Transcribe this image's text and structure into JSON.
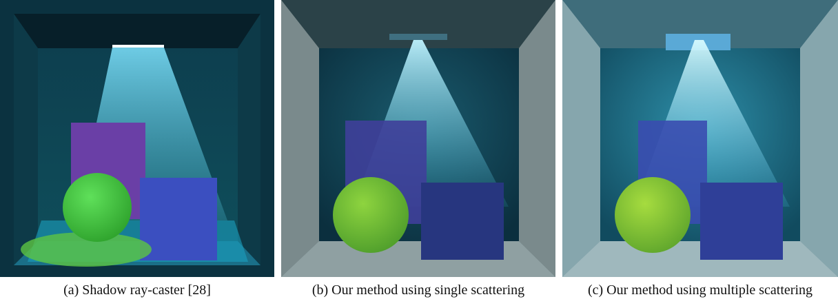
{
  "figure": {
    "panels": [
      {
        "caption": "(a)  Shadow ray-caster [28]",
        "render_style": "shadow-ray-caster"
      },
      {
        "caption": "(b)  Our method using single scattering",
        "render_style": "single-scattering"
      },
      {
        "caption": "(c)  Our method using multiple scattering",
        "render_style": "multiple-scattering"
      }
    ],
    "colors": {
      "sphere": "#3fbf3a",
      "purple_box": "#6a4aa8",
      "blue_box": "#3a4fb0",
      "light_beam": "#5fd8ff"
    }
  }
}
